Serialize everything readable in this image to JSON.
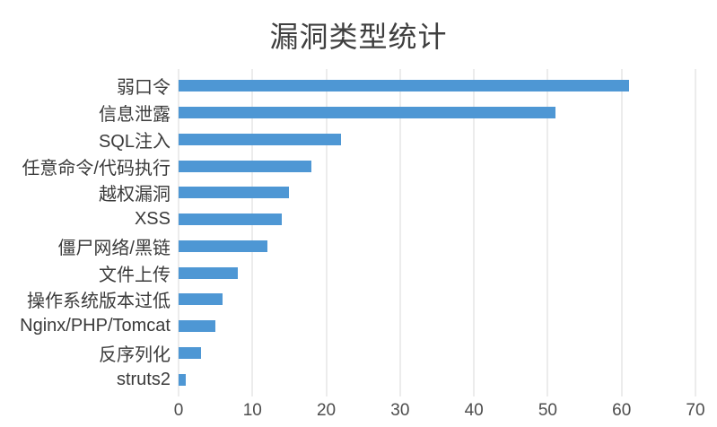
{
  "chart_data": {
    "type": "bar",
    "orientation": "horizontal",
    "title": "漏洞类型统计",
    "categories": [
      "弱口令",
      "信息泄露",
      "SQL注入",
      "任意命令/代码执行",
      "越权漏洞",
      "XSS",
      "僵尸网络/黑链",
      "文件上传",
      "操作系统版本过低",
      "Nginx/PHP/Tomcat",
      "反序列化",
      "struts2"
    ],
    "values": [
      61,
      51,
      22,
      18,
      15,
      14,
      12,
      8,
      6,
      5,
      3,
      1
    ],
    "xlabel": "",
    "ylabel": "",
    "xlim": [
      0,
      70
    ],
    "x_ticks": [
      0,
      10,
      20,
      30,
      40,
      50,
      60,
      70
    ],
    "grid": true,
    "legend_position": "none",
    "bar_color": "#4E97D4",
    "gridline_color": "#D9D9D9",
    "title_color": "#3F3F3F",
    "label_color": "#3B3B3B",
    "tick_color": "#4D4D4D",
    "background_color": "#FFFFFF"
  }
}
